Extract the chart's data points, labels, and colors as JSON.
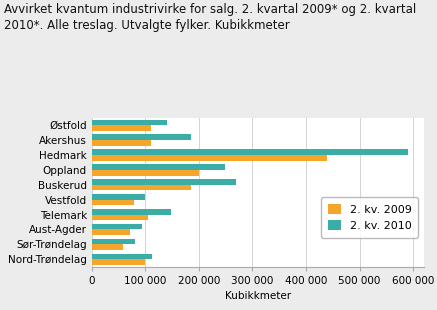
{
  "title_line1": "Avvirket kvantum industrivirke for salg. 2. kvartal 2009* og 2. kvartal",
  "title_line2": "2010*. Alle treslag. Utvalgte fylker. Kubikkmeter",
  "categories": [
    "Østfold",
    "Akershus",
    "Hedmark",
    "Oppland",
    "Buskerud",
    "Vestfold",
    "Telemark",
    "Aust-Agder",
    "Sør-Trøndelag",
    "Nord-Trøndelag"
  ],
  "values_2009": [
    110000,
    110000,
    440000,
    200000,
    185000,
    78000,
    105000,
    72000,
    58000,
    100000
  ],
  "values_2010": [
    140000,
    185000,
    590000,
    248000,
    270000,
    100000,
    148000,
    93000,
    80000,
    113000
  ],
  "color_2009": "#F5A52A",
  "color_2010": "#3AADA7",
  "legend_labels": [
    "2. kv. 2009",
    "2. kv. 2010"
  ],
  "xlabel": "Kubikkmeter",
  "xlim": [
    0,
    620000
  ],
  "xticks": [
    0,
    100000,
    200000,
    300000,
    400000,
    500000,
    600000
  ],
  "xtick_labels": [
    "0",
    "100 000",
    "200 000",
    "300 000",
    "400 000",
    "500 000",
    "600 000"
  ],
  "bar_height": 0.38,
  "title_fontsize": 8.5,
  "tick_fontsize": 7.5,
  "label_fontsize": 7.5,
  "legend_fontsize": 8,
  "background_color": "#ececec",
  "plot_background": "#ffffff"
}
